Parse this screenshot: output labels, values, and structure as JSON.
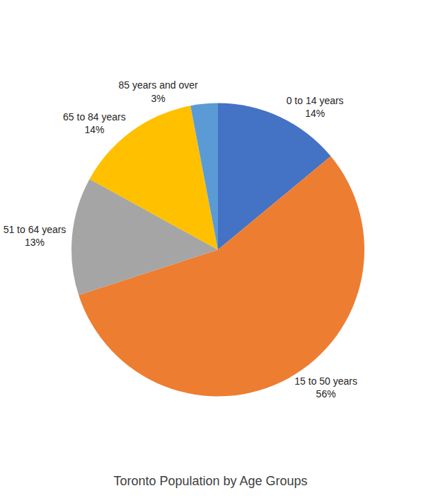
{
  "chart_data": {
    "type": "pie",
    "title": "Toronto Population by Age Groups",
    "categories": [
      "0 to 14 years",
      "15 to 50 years",
      "51 to 64 years",
      "65 to 84 years",
      "85 years and over"
    ],
    "values": [
      14,
      56,
      13,
      14,
      3
    ],
    "value_labels": [
      "14%",
      "56%",
      "13%",
      "14%",
      "3%"
    ],
    "colors": [
      "#4472c4",
      "#ed7d31",
      "#a5a5a5",
      "#ffc000",
      "#5b9bd5"
    ],
    "data_labels": true
  }
}
